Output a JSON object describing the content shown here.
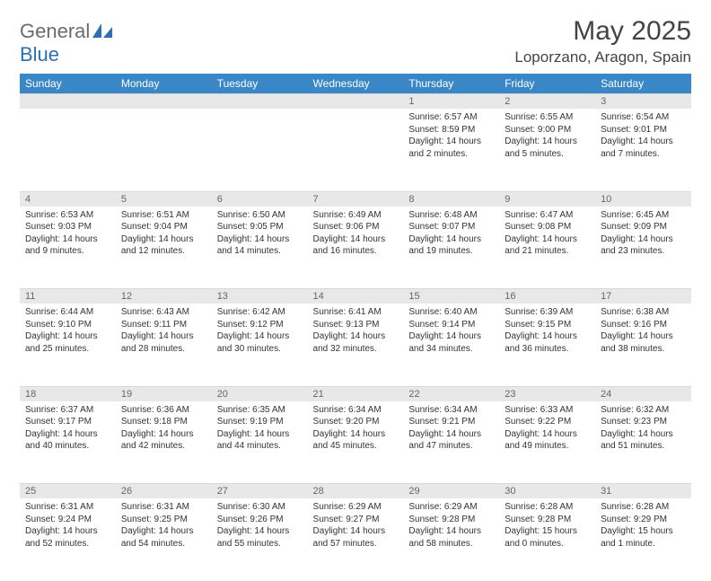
{
  "logo": {
    "text1": "General",
    "text2": "Blue"
  },
  "title": "May 2025",
  "location": "Loporzano, Aragon, Spain",
  "colors": {
    "header_bg": "#3a87c8",
    "header_fg": "#ffffff",
    "daynum_bg": "#e8e8e8",
    "daynum_fg": "#666666",
    "text": "#333333",
    "logo_gray": "#6b6b6b",
    "logo_blue": "#2d6fb4"
  },
  "day_names": [
    "Sunday",
    "Monday",
    "Tuesday",
    "Wednesday",
    "Thursday",
    "Friday",
    "Saturday"
  ],
  "weeks": [
    [
      {
        "n": "",
        "sr": "",
        "ss": "",
        "dl": ""
      },
      {
        "n": "",
        "sr": "",
        "ss": "",
        "dl": ""
      },
      {
        "n": "",
        "sr": "",
        "ss": "",
        "dl": ""
      },
      {
        "n": "",
        "sr": "",
        "ss": "",
        "dl": ""
      },
      {
        "n": "1",
        "sr": "Sunrise: 6:57 AM",
        "ss": "Sunset: 8:59 PM",
        "dl": "Daylight: 14 hours and 2 minutes."
      },
      {
        "n": "2",
        "sr": "Sunrise: 6:55 AM",
        "ss": "Sunset: 9:00 PM",
        "dl": "Daylight: 14 hours and 5 minutes."
      },
      {
        "n": "3",
        "sr": "Sunrise: 6:54 AM",
        "ss": "Sunset: 9:01 PM",
        "dl": "Daylight: 14 hours and 7 minutes."
      }
    ],
    [
      {
        "n": "4",
        "sr": "Sunrise: 6:53 AM",
        "ss": "Sunset: 9:03 PM",
        "dl": "Daylight: 14 hours and 9 minutes."
      },
      {
        "n": "5",
        "sr": "Sunrise: 6:51 AM",
        "ss": "Sunset: 9:04 PM",
        "dl": "Daylight: 14 hours and 12 minutes."
      },
      {
        "n": "6",
        "sr": "Sunrise: 6:50 AM",
        "ss": "Sunset: 9:05 PM",
        "dl": "Daylight: 14 hours and 14 minutes."
      },
      {
        "n": "7",
        "sr": "Sunrise: 6:49 AM",
        "ss": "Sunset: 9:06 PM",
        "dl": "Daylight: 14 hours and 16 minutes."
      },
      {
        "n": "8",
        "sr": "Sunrise: 6:48 AM",
        "ss": "Sunset: 9:07 PM",
        "dl": "Daylight: 14 hours and 19 minutes."
      },
      {
        "n": "9",
        "sr": "Sunrise: 6:47 AM",
        "ss": "Sunset: 9:08 PM",
        "dl": "Daylight: 14 hours and 21 minutes."
      },
      {
        "n": "10",
        "sr": "Sunrise: 6:45 AM",
        "ss": "Sunset: 9:09 PM",
        "dl": "Daylight: 14 hours and 23 minutes."
      }
    ],
    [
      {
        "n": "11",
        "sr": "Sunrise: 6:44 AM",
        "ss": "Sunset: 9:10 PM",
        "dl": "Daylight: 14 hours and 25 minutes."
      },
      {
        "n": "12",
        "sr": "Sunrise: 6:43 AM",
        "ss": "Sunset: 9:11 PM",
        "dl": "Daylight: 14 hours and 28 minutes."
      },
      {
        "n": "13",
        "sr": "Sunrise: 6:42 AM",
        "ss": "Sunset: 9:12 PM",
        "dl": "Daylight: 14 hours and 30 minutes."
      },
      {
        "n": "14",
        "sr": "Sunrise: 6:41 AM",
        "ss": "Sunset: 9:13 PM",
        "dl": "Daylight: 14 hours and 32 minutes."
      },
      {
        "n": "15",
        "sr": "Sunrise: 6:40 AM",
        "ss": "Sunset: 9:14 PM",
        "dl": "Daylight: 14 hours and 34 minutes."
      },
      {
        "n": "16",
        "sr": "Sunrise: 6:39 AM",
        "ss": "Sunset: 9:15 PM",
        "dl": "Daylight: 14 hours and 36 minutes."
      },
      {
        "n": "17",
        "sr": "Sunrise: 6:38 AM",
        "ss": "Sunset: 9:16 PM",
        "dl": "Daylight: 14 hours and 38 minutes."
      }
    ],
    [
      {
        "n": "18",
        "sr": "Sunrise: 6:37 AM",
        "ss": "Sunset: 9:17 PM",
        "dl": "Daylight: 14 hours and 40 minutes."
      },
      {
        "n": "19",
        "sr": "Sunrise: 6:36 AM",
        "ss": "Sunset: 9:18 PM",
        "dl": "Daylight: 14 hours and 42 minutes."
      },
      {
        "n": "20",
        "sr": "Sunrise: 6:35 AM",
        "ss": "Sunset: 9:19 PM",
        "dl": "Daylight: 14 hours and 44 minutes."
      },
      {
        "n": "21",
        "sr": "Sunrise: 6:34 AM",
        "ss": "Sunset: 9:20 PM",
        "dl": "Daylight: 14 hours and 45 minutes."
      },
      {
        "n": "22",
        "sr": "Sunrise: 6:34 AM",
        "ss": "Sunset: 9:21 PM",
        "dl": "Daylight: 14 hours and 47 minutes."
      },
      {
        "n": "23",
        "sr": "Sunrise: 6:33 AM",
        "ss": "Sunset: 9:22 PM",
        "dl": "Daylight: 14 hours and 49 minutes."
      },
      {
        "n": "24",
        "sr": "Sunrise: 6:32 AM",
        "ss": "Sunset: 9:23 PM",
        "dl": "Daylight: 14 hours and 51 minutes."
      }
    ],
    [
      {
        "n": "25",
        "sr": "Sunrise: 6:31 AM",
        "ss": "Sunset: 9:24 PM",
        "dl": "Daylight: 14 hours and 52 minutes."
      },
      {
        "n": "26",
        "sr": "Sunrise: 6:31 AM",
        "ss": "Sunset: 9:25 PM",
        "dl": "Daylight: 14 hours and 54 minutes."
      },
      {
        "n": "27",
        "sr": "Sunrise: 6:30 AM",
        "ss": "Sunset: 9:26 PM",
        "dl": "Daylight: 14 hours and 55 minutes."
      },
      {
        "n": "28",
        "sr": "Sunrise: 6:29 AM",
        "ss": "Sunset: 9:27 PM",
        "dl": "Daylight: 14 hours and 57 minutes."
      },
      {
        "n": "29",
        "sr": "Sunrise: 6:29 AM",
        "ss": "Sunset: 9:28 PM",
        "dl": "Daylight: 14 hours and 58 minutes."
      },
      {
        "n": "30",
        "sr": "Sunrise: 6:28 AM",
        "ss": "Sunset: 9:28 PM",
        "dl": "Daylight: 15 hours and 0 minutes."
      },
      {
        "n": "31",
        "sr": "Sunrise: 6:28 AM",
        "ss": "Sunset: 9:29 PM",
        "dl": "Daylight: 15 hours and 1 minute."
      }
    ]
  ]
}
